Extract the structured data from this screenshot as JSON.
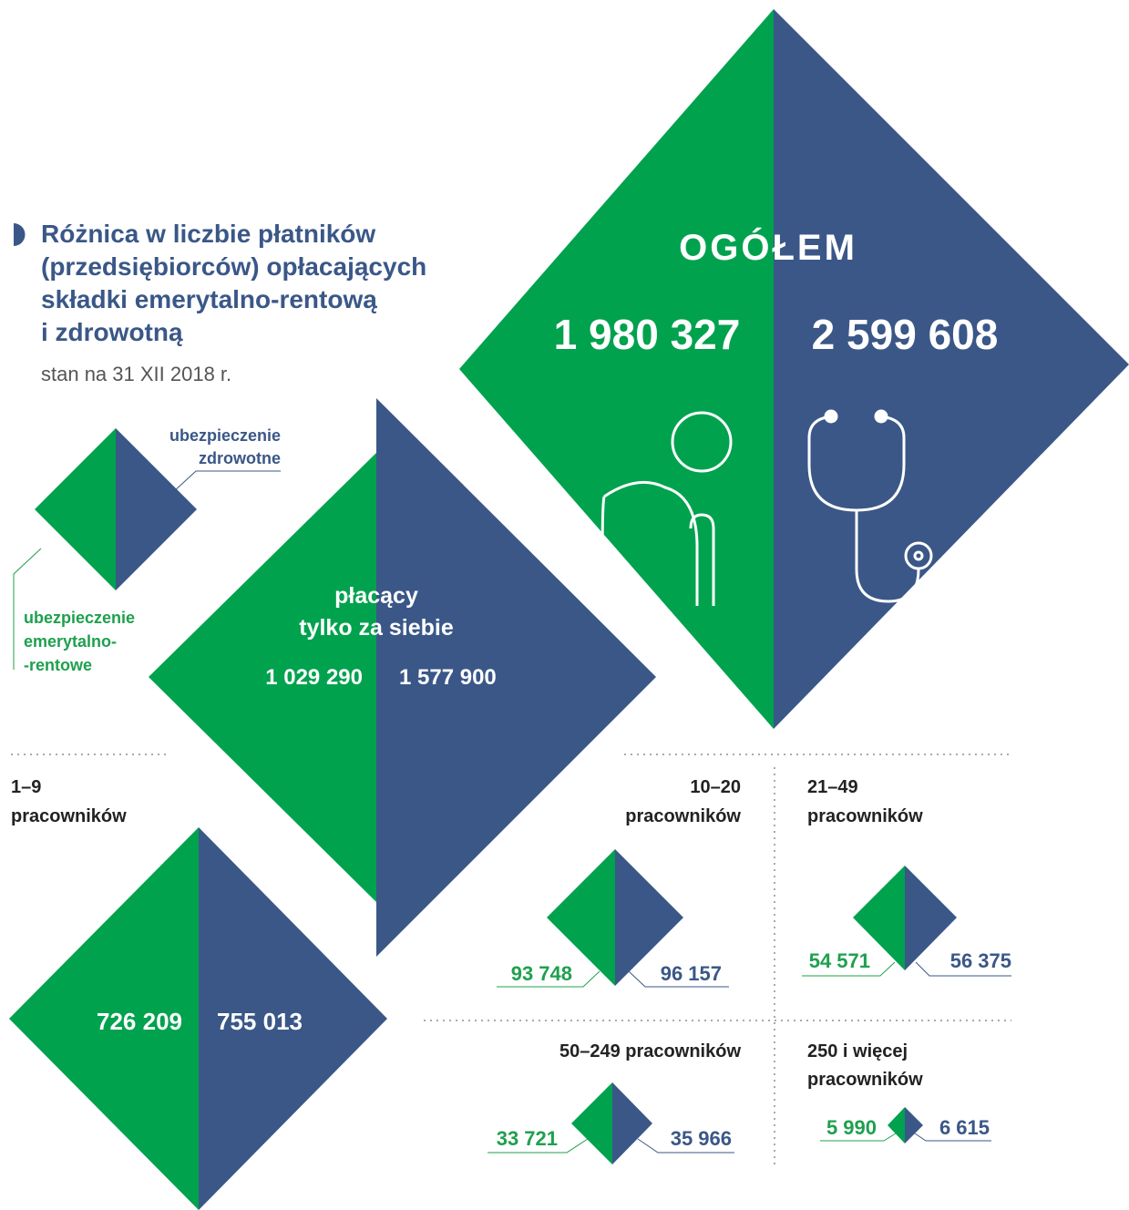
{
  "header": {
    "title": [
      "Różnica w liczbie płatników",
      "(przedsiębiorców) opłacających",
      "składki emerytalno-rentową",
      "i zdrowotną"
    ],
    "subtitle": "stan na 31 XII 2018 r."
  },
  "legend": {
    "health": [
      "ubezpieczenie",
      "zdrowotne"
    ],
    "pension": [
      "ubezpieczenie",
      "emerytalno-",
      "-rentowe"
    ]
  },
  "total": {
    "label": "OGÓŁEM",
    "pension": "1 980 327",
    "health": "2 599 608"
  },
  "self_only": {
    "label": [
      "płacący",
      "tylko za siebie"
    ],
    "pension": "1 029 290",
    "health": "1 577 900"
  },
  "groups": [
    {
      "label": [
        "1–9",
        "pracowników"
      ],
      "pension": "726 209",
      "health": "755 013"
    },
    {
      "label": [
        "10–20",
        "pracowników"
      ],
      "pension": "93 748",
      "health": "96 157"
    },
    {
      "label": [
        "21–49",
        "pracowników"
      ],
      "pension": "54 571",
      "health": "56 375"
    },
    {
      "label": [
        "50–249 pracowników"
      ],
      "pension": "33 721",
      "health": "35 966"
    },
    {
      "label": [
        "250 i więcej",
        "pracowników"
      ],
      "pension": "5 990",
      "health": "6 615"
    }
  ]
}
